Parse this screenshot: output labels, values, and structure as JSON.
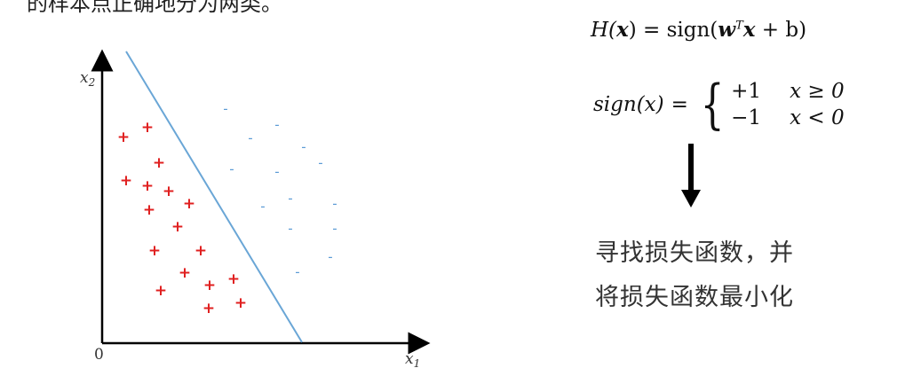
{
  "header": {
    "text": "的样本点正确地分为两类。"
  },
  "plot": {
    "y_axis_label": "x2",
    "x_axis_label": "x1",
    "origin_label": "0",
    "positive_marker": "+",
    "negative_marker": "-",
    "positive_color": "#e02020",
    "negative_color": "#5b9bd5",
    "line_color": "#6aa6d6",
    "axis_color": "#000000"
  },
  "formula1": {
    "lhs_H": "H(",
    "lhs_x": "x",
    "lhs_close": ") = sign(",
    "w": "w",
    "T": "T",
    "x": "x",
    "tail": " + b)"
  },
  "formula2": {
    "lhs": "sign(x)",
    "eq": "=",
    "brace": "{",
    "cases": [
      {
        "value": "+1",
        "condition": "x ≥ 0"
      },
      {
        "value": "−1",
        "condition": "x < 0"
      }
    ]
  },
  "caption": {
    "line1": "寻找损失函数，并",
    "line2": "将损失函数最小化"
  }
}
